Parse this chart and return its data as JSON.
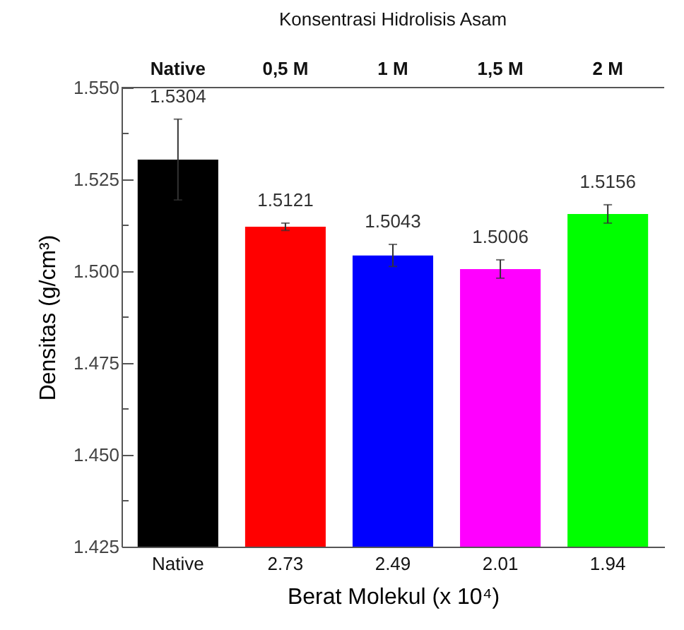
{
  "chart_data": {
    "type": "bar",
    "xlabel": "Berat Molekul (x 10⁴)",
    "ylabel": "Densitas (g/cm³)",
    "x2label": "Konsentrasi Hidrolisis Asam",
    "categories": [
      "Native",
      "2.73",
      "2.49",
      "2.01",
      "1.94"
    ],
    "values": [
      1.5304,
      1.5121,
      1.5043,
      1.5006,
      1.5156
    ],
    "colors": [
      "#000000",
      "#ff0000",
      "#0000ff",
      "#ff00ff",
      "#00ff00"
    ],
    "errors": [
      0.011,
      0.001,
      0.003,
      0.0025,
      0.0025
    ],
    "data_labels": true,
    "annotations": [
      "Native",
      "0,5 M",
      "1 M",
      "1,5 M",
      "2 M"
    ],
    "ylim": [
      1.425,
      1.55
    ],
    "yticks": [
      {
        "value": 1.425,
        "label": "1.425"
      },
      {
        "value": 1.4375,
        "label": null
      },
      {
        "value": 1.45,
        "label": "1.450"
      },
      {
        "value": 1.4625,
        "label": null
      },
      {
        "value": 1.475,
        "label": "1.475"
      },
      {
        "value": 1.4875,
        "label": null
      },
      {
        "value": 1.5,
        "label": "1.500"
      },
      {
        "value": 1.5125,
        "label": null
      },
      {
        "value": 1.525,
        "label": "1.525"
      },
      {
        "value": 1.5375,
        "label": null
      },
      {
        "value": 1.55,
        "label": "1.550"
      }
    ],
    "grid": false
  }
}
